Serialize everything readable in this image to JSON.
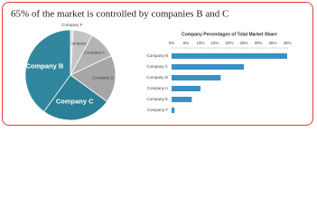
{
  "title": "65% of the market is controlled by companies B and C",
  "chart_data": [
    {
      "type": "pie",
      "categories": [
        "Company F",
        "Company E",
        "Company A",
        "Company D",
        "Company C",
        "Company B"
      ],
      "values": [
        1,
        7,
        10,
        17,
        25,
        40
      ],
      "colors": [
        "#dcdcdc",
        "#c4c4c4",
        "#b4b4b4",
        "#a6a6a6",
        "#2b7f96",
        "#31889e"
      ]
    },
    {
      "type": "bar",
      "orientation": "horizontal",
      "title": "Company Percentages of Total Market Share",
      "categories": [
        "Company B",
        "Company C",
        "Company D",
        "Company A",
        "Company E",
        "Company F"
      ],
      "values": [
        40,
        25,
        17,
        10,
        7,
        1
      ],
      "color": "#3b8fc7",
      "xlim": [
        0,
        40
      ],
      "xticks": [
        {
          "value": 0,
          "label": "0%"
        },
        {
          "value": 5,
          "label": "5%"
        },
        {
          "value": 10,
          "label": "10%"
        },
        {
          "value": 15,
          "label": "15%"
        },
        {
          "value": 20,
          "label": "20%"
        },
        {
          "value": 25,
          "label": "25%"
        },
        {
          "value": 30,
          "label": "30%"
        },
        {
          "value": 35,
          "label": "35%"
        },
        {
          "value": 40,
          "label": "40%"
        }
      ]
    }
  ]
}
